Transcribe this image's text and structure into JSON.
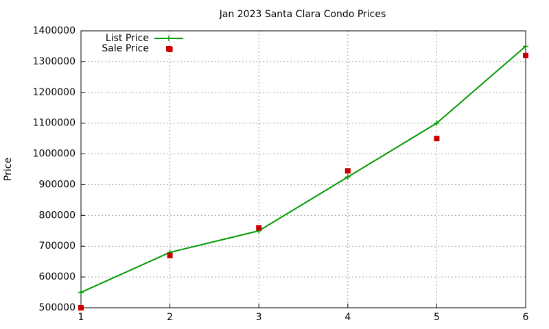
{
  "chart_data": {
    "type": "line",
    "title": "Jan 2023 Santa Clara Condo Prices",
    "y_label": "Price",
    "series": [
      {
        "name": "List Price",
        "color": "#009900",
        "mode": "lines+points",
        "x": [
          1,
          2,
          3,
          4,
          5,
          6
        ],
        "values": [
          550000,
          680000,
          750000,
          925000,
          1100000,
          1350000
        ]
      },
      {
        "name": "Sale Price",
        "color": "#cc0000",
        "mode": "points",
        "x": [
          1,
          2,
          2,
          3,
          4,
          5,
          6
        ],
        "values": [
          500000,
          1340000,
          670000,
          760000,
          945000,
          1050000,
          1320000
        ]
      }
    ],
    "xlim": [
      1,
      6
    ],
    "xticks": [
      1,
      2,
      3,
      4,
      5,
      6
    ],
    "ylim": [
      500000,
      1400000
    ],
    "yticks": [
      500000,
      600000,
      700000,
      800000,
      900000,
      1000000,
      1100000,
      1200000,
      1300000,
      1400000
    ],
    "grid": true,
    "legend": "top-left"
  }
}
